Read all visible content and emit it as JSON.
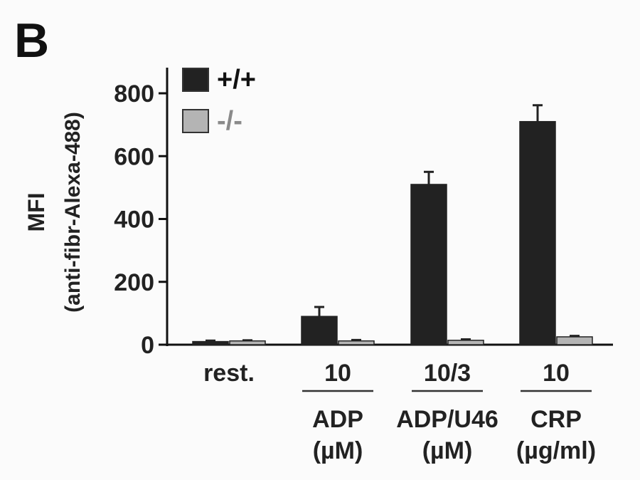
{
  "panel_letter": "B",
  "chart_data": {
    "type": "bar",
    "title": "",
    "ylabel": "MFI",
    "ylabel_sub": "(anti-fibr-Alexa-488)",
    "ylim": [
      0,
      900
    ],
    "yticks": [
      0,
      200,
      400,
      600,
      800
    ],
    "categories": [
      "rest.",
      "10",
      "10/3",
      "10"
    ],
    "series": [
      {
        "name": "+/+",
        "color": "#222222",
        "values": [
          10,
          90,
          510,
          710
        ],
        "errors": [
          3,
          30,
          40,
          52
        ]
      },
      {
        "name": "-/-",
        "color": "#b4b4b4",
        "values": [
          12,
          12,
          14,
          25
        ],
        "errors": [
          2,
          3,
          3,
          3
        ]
      }
    ],
    "groups": [
      {
        "name": "ADP",
        "unit": "(µM)"
      },
      {
        "name": "ADP/U46",
        "unit": "(µM)"
      },
      {
        "name": "CRP",
        "unit": "(µg/ml)"
      }
    ],
    "legend_position": "top-left",
    "grid": false
  }
}
